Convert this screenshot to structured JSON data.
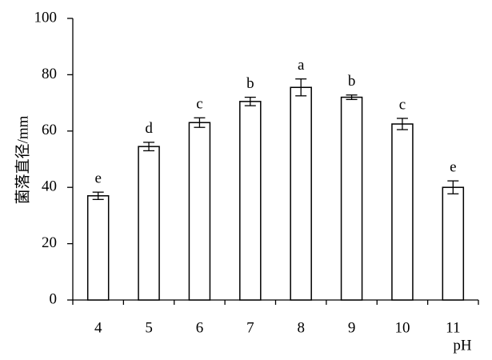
{
  "chart_data": {
    "type": "bar",
    "x_label": "pH",
    "y_label": "菌落直径/mm",
    "categories": [
      "4",
      "5",
      "6",
      "7",
      "8",
      "9",
      "10",
      "11"
    ],
    "values": [
      37,
      54.5,
      63,
      70.5,
      75.5,
      72,
      62.5,
      40
    ],
    "errors": [
      1.3,
      1.5,
      1.7,
      1.5,
      3,
      0.8,
      2,
      2.3
    ],
    "significance": [
      "e",
      "d",
      "c",
      "b",
      "a",
      "b",
      "c",
      "e"
    ],
    "color": "#ffffff",
    "edge_color": "#000000",
    "ylim": [
      0,
      100
    ],
    "yticks": [
      0,
      20,
      40,
      60,
      80,
      100
    ],
    "grid": false
  }
}
